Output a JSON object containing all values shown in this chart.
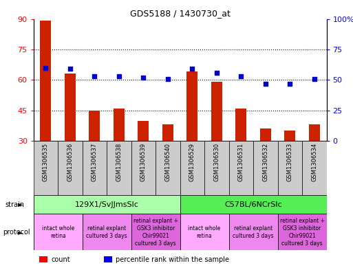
{
  "title": "GDS5188 / 1430730_at",
  "samples": [
    "GSM1306535",
    "GSM1306536",
    "GSM1306537",
    "GSM1306538",
    "GSM1306539",
    "GSM1306540",
    "GSM1306529",
    "GSM1306530",
    "GSM1306531",
    "GSM1306532",
    "GSM1306533",
    "GSM1306534"
  ],
  "counts": [
    89,
    63,
    45,
    46,
    40,
    38,
    64,
    59,
    46,
    36,
    35,
    38
  ],
  "percentiles": [
    60,
    59,
    53,
    53,
    52,
    51,
    59,
    56,
    53,
    47,
    47,
    51
  ],
  "ylim_left": [
    30,
    90
  ],
  "ylim_right": [
    0,
    100
  ],
  "yticks_left": [
    30,
    45,
    60,
    75,
    90
  ],
  "yticks_right": [
    0,
    25,
    50,
    75,
    100
  ],
  "bar_color": "#cc2200",
  "dot_color": "#0000cc",
  "strain_groups": [
    {
      "label": "129X1/SvJJmsSlc",
      "start": 0,
      "end": 6,
      "color": "#aaffaa"
    },
    {
      "label": "C57BL/6NCrSlc",
      "start": 6,
      "end": 12,
      "color": "#55ee55"
    }
  ],
  "protocol_groups": [
    {
      "label": "intact whole\nretina",
      "start": 0,
      "end": 2,
      "color": "#ffaaff"
    },
    {
      "label": "retinal explant\ncultured 3 days",
      "start": 2,
      "end": 4,
      "color": "#ee88ee"
    },
    {
      "label": "retinal explant +\nGSK3 inhibitor\nChir99021\ncultured 3 days",
      "start": 4,
      "end": 6,
      "color": "#dd66dd"
    },
    {
      "label": "intact whole\nretina",
      "start": 6,
      "end": 8,
      "color": "#ffaaff"
    },
    {
      "label": "retinal explant\ncultured 3 days",
      "start": 8,
      "end": 10,
      "color": "#ee88ee"
    },
    {
      "label": "retinal explant +\nGSK3 inhibitor\nChir99021\ncultured 3 days",
      "start": 10,
      "end": 12,
      "color": "#dd66dd"
    }
  ],
  "grid_dotted_at": [
    45,
    60,
    75
  ],
  "bg_color": "white",
  "sample_bg_color": "#cccccc",
  "bar_bottom": 30,
  "left_label_color": "red",
  "right_label_color": "blue"
}
